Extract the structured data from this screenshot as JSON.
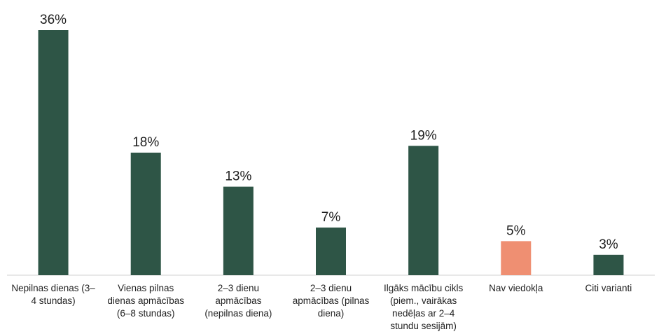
{
  "chart_data": {
    "type": "bar",
    "title": "",
    "xlabel": "",
    "ylabel": "",
    "ylim": [
      0,
      36
    ],
    "grid": false,
    "legend": "none",
    "categories": [
      "Nepilnas dienas (3–4 stundas)",
      "Vienas pilnas dienas apmācības (6–8 stundas)",
      "2–3 dienu apmācības (nepilnas diena)",
      "2–3 dienu apmācības (pilnas diena)",
      "Ilgāks mācību cikls (piem., vairākas nedēļas ar 2–4 stundu sesijām)",
      "Nav viedokļa",
      "Citi varianti"
    ],
    "category_label_lines": [
      [
        "Nepilnas dienas (3–",
        "4 stundas)"
      ],
      [
        "Vienas pilnas",
        "dienas apmācības",
        "(6–8 stundas)"
      ],
      [
        "2–3 dienu",
        "apmācības",
        "(nepilnas diena)"
      ],
      [
        "2–3 dienu",
        "apmācības (pilnas",
        "diena)"
      ],
      [
        "Ilgāks mācību cikls",
        "(piem., vairākas",
        "nedēļas ar 2–4",
        "stundu sesijām)"
      ],
      [
        "Nav viedokļa"
      ],
      [
        "Citi varianti"
      ]
    ],
    "values": [
      36,
      18,
      13,
      7,
      19,
      5,
      3
    ],
    "value_labels": [
      "36%",
      "18%",
      "13%",
      "7%",
      "19%",
      "5%",
      "3%"
    ],
    "bar_colors": [
      "#2e5546",
      "#2e5546",
      "#2e5546",
      "#2e5546",
      "#2e5546",
      "#ef8f72",
      "#2e5546"
    ],
    "colors": {
      "primary": "#2e5546",
      "highlight": "#ef8f72",
      "axis": "#d0d0d0",
      "text": "#1f1f1f"
    }
  }
}
